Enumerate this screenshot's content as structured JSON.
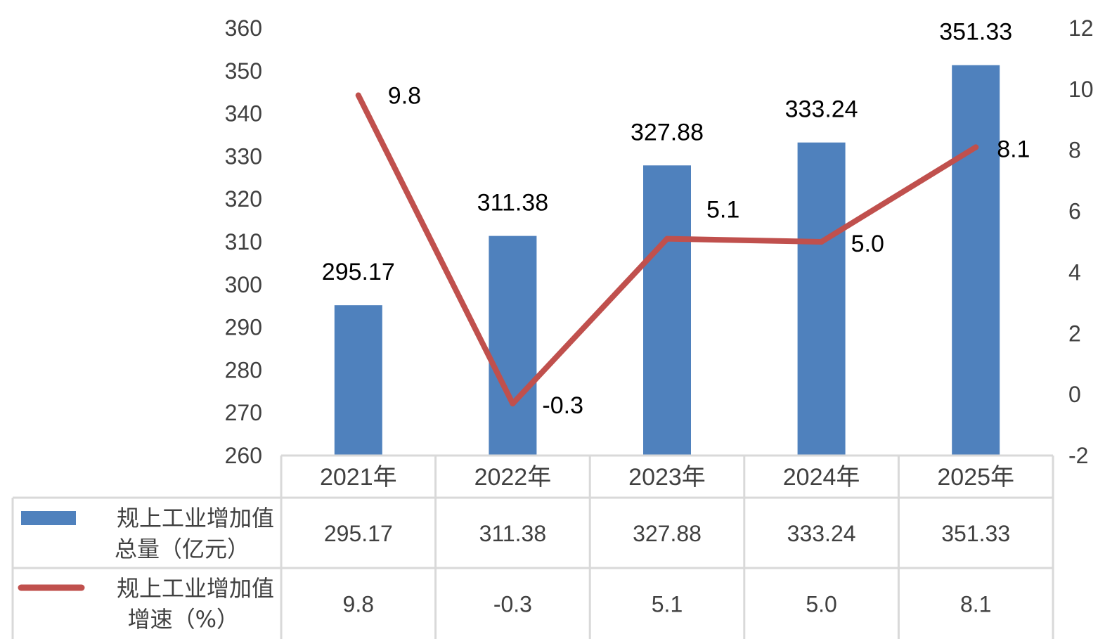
{
  "chart_data": {
    "type": "bar",
    "categories": [
      "2021年",
      "2022年",
      "2023年",
      "2024年",
      "2025年"
    ],
    "series": [
      {
        "name": "规上工业增加值总量（亿元）",
        "name_lines": [
          "规上工业增加值",
          "总量（亿元）"
        ],
        "type": "bar",
        "axis": "left",
        "color": "#4F81BD",
        "values": [
          295.17,
          311.38,
          327.88,
          333.24,
          351.33
        ],
        "labels": [
          "295.17",
          "311.38",
          "327.88",
          "333.24",
          "351.33"
        ]
      },
      {
        "name": "规上工业增加值增速（%）",
        "name_lines": [
          "规上工业增加值",
          "增速（%）"
        ],
        "type": "line",
        "axis": "right",
        "color": "#C0504D",
        "values": [
          9.8,
          -0.3,
          5.1,
          5.0,
          8.1
        ],
        "labels": [
          "9.8",
          "-0.3",
          "5.1",
          "5.0",
          "8.1"
        ]
      }
    ],
    "y_left": {
      "ylim": [
        260,
        360
      ],
      "ticks": [
        "260",
        "270",
        "280",
        "290",
        "300",
        "310",
        "320",
        "330",
        "340",
        "350",
        "360"
      ]
    },
    "y_right": {
      "ylim": [
        -2,
        12
      ],
      "ticks": [
        "-2",
        "0",
        "2",
        "4",
        "6",
        "8",
        "10",
        "12"
      ]
    },
    "grid": false,
    "legend": "data-table"
  }
}
